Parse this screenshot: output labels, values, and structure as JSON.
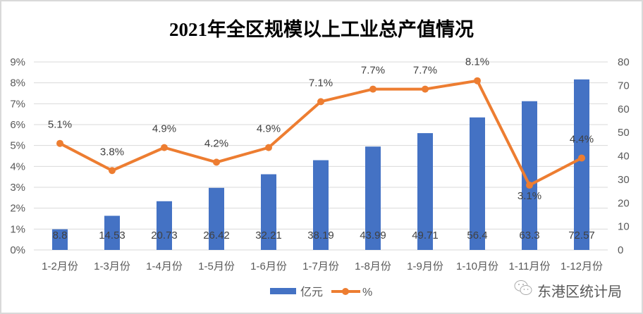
{
  "chart_data": {
    "type": "bar+line",
    "title": "2021年全区规模以上工业总产值情况",
    "categories": [
      "1-2月份",
      "1-3月份",
      "1-4月份",
      "1-5月份",
      "1-6月份",
      "1-7月份",
      "1-8月份",
      "1-9月份",
      "1-10月份",
      "1-11月份",
      "1-12月份"
    ],
    "series": [
      {
        "name": "亿元",
        "type": "bar",
        "axis": "right",
        "color": "#4472C4",
        "values": [
          8.8,
          14.53,
          20.73,
          26.42,
          32.21,
          38.19,
          43.99,
          49.71,
          56.4,
          63.3,
          72.57
        ],
        "labels": [
          "8.8",
          "14.53",
          "20.73",
          "26.42",
          "32.21",
          "38.19",
          "43.99",
          "49.71",
          "56.4",
          "63.3",
          "72.57"
        ]
      },
      {
        "name": "%",
        "type": "line",
        "axis": "left",
        "color": "#ED7D31",
        "values": [
          5.1,
          3.8,
          4.9,
          4.2,
          4.9,
          7.1,
          7.7,
          7.7,
          8.1,
          3.1,
          4.4
        ],
        "labels": [
          "5.1%",
          "3.8%",
          "4.9%",
          "4.2%",
          "4.9%",
          "7.1%",
          "7.7%",
          "7.7%",
          "8.1%",
          "3.1%",
          "4.4%"
        ]
      }
    ],
    "left_axis": {
      "ylim": [
        0,
        9
      ],
      "ticks": [
        "0%",
        "1%",
        "2%",
        "3%",
        "4%",
        "5%",
        "6%",
        "7%",
        "8%",
        "9%"
      ]
    },
    "right_axis": {
      "ylim": [
        0,
        80
      ],
      "ticks": [
        "0",
        "10",
        "20",
        "30",
        "40",
        "50",
        "60",
        "70",
        "80"
      ]
    },
    "grid": true,
    "legend": "bottom"
  },
  "watermark": "东港区统计局"
}
